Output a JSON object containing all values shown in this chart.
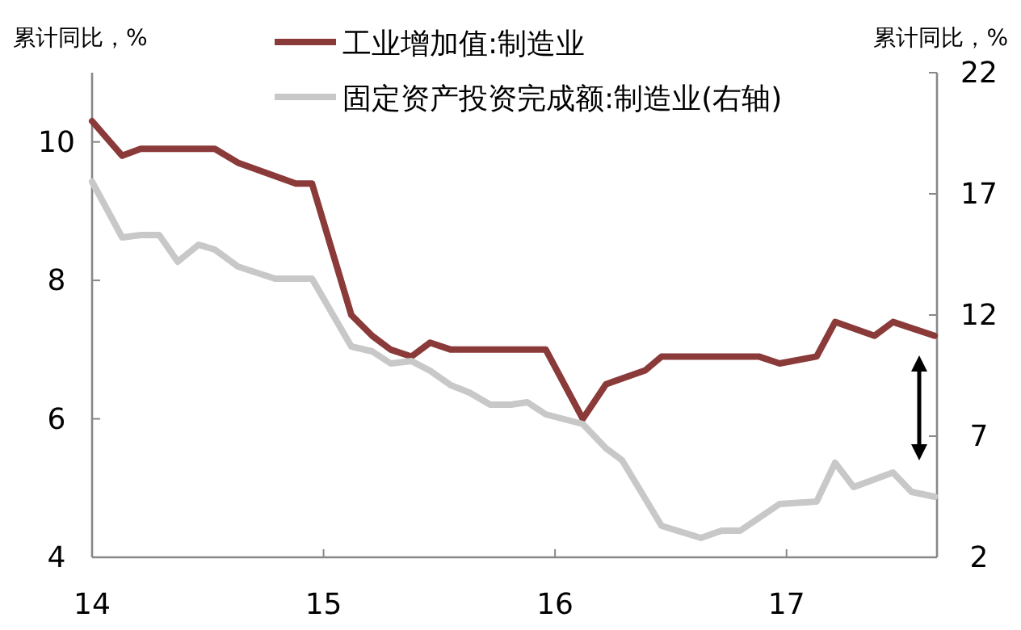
{
  "chart_data": {
    "type": "line",
    "ylabel": "累计同比，%",
    "y2label": "累计同比，%",
    "xlim": [
      14,
      17.65
    ],
    "xticks": [
      14,
      15,
      16,
      17
    ],
    "ylim": [
      4,
      11
    ],
    "yticks": [
      4,
      6,
      8,
      10
    ],
    "y2lim": [
      2,
      22
    ],
    "y2ticks": [
      2,
      7,
      12,
      17,
      22
    ],
    "grid": false,
    "legend": "top",
    "marker": "none",
    "line_style": "solid",
    "series": [
      {
        "name": "工业增加值:制造业",
        "color": "#8b3a3a",
        "x": [
          14.0,
          14.13,
          14.21,
          14.53,
          14.63,
          14.88,
          14.95,
          15.12,
          15.21,
          15.29,
          15.38,
          15.46,
          15.55,
          15.96,
          16.12,
          16.22,
          16.39,
          16.46,
          16.88,
          16.97,
          17.13,
          17.21,
          17.38,
          17.46,
          17.64
        ],
        "values": [
          10.3,
          9.8,
          9.9,
          9.9,
          9.7,
          9.4,
          9.4,
          7.5,
          7.2,
          7.0,
          6.9,
          7.1,
          7.0,
          7.0,
          6.0,
          6.5,
          6.7,
          6.9,
          6.9,
          6.8,
          6.9,
          7.4,
          7.2,
          7.4,
          7.2
        ]
      },
      {
        "name": "固定资产投资完成额:制造业(右轴)",
        "color": "#c8c8c8",
        "axis": "y2",
        "x": [
          14.0,
          14.13,
          14.21,
          14.29,
          14.37,
          14.46,
          14.53,
          14.63,
          14.79,
          14.95,
          15.12,
          15.21,
          15.29,
          15.38,
          15.46,
          15.55,
          15.63,
          15.72,
          15.81,
          15.88,
          15.96,
          16.12,
          16.22,
          16.29,
          16.46,
          16.63,
          16.72,
          16.8,
          16.97,
          17.13,
          17.21,
          17.29,
          17.46,
          17.54,
          17.64
        ],
        "values": [
          17.5,
          15.2,
          15.3,
          15.3,
          14.2,
          14.9,
          14.7,
          14.0,
          13.5,
          13.5,
          10.7,
          10.5,
          10.0,
          10.1,
          9.7,
          9.1,
          8.8,
          8.3,
          8.3,
          8.4,
          7.9,
          7.5,
          6.5,
          6.0,
          3.3,
          2.8,
          3.1,
          3.1,
          4.2,
          4.3,
          5.9,
          4.9,
          5.5,
          4.7,
          4.5
        ]
      }
    ]
  }
}
